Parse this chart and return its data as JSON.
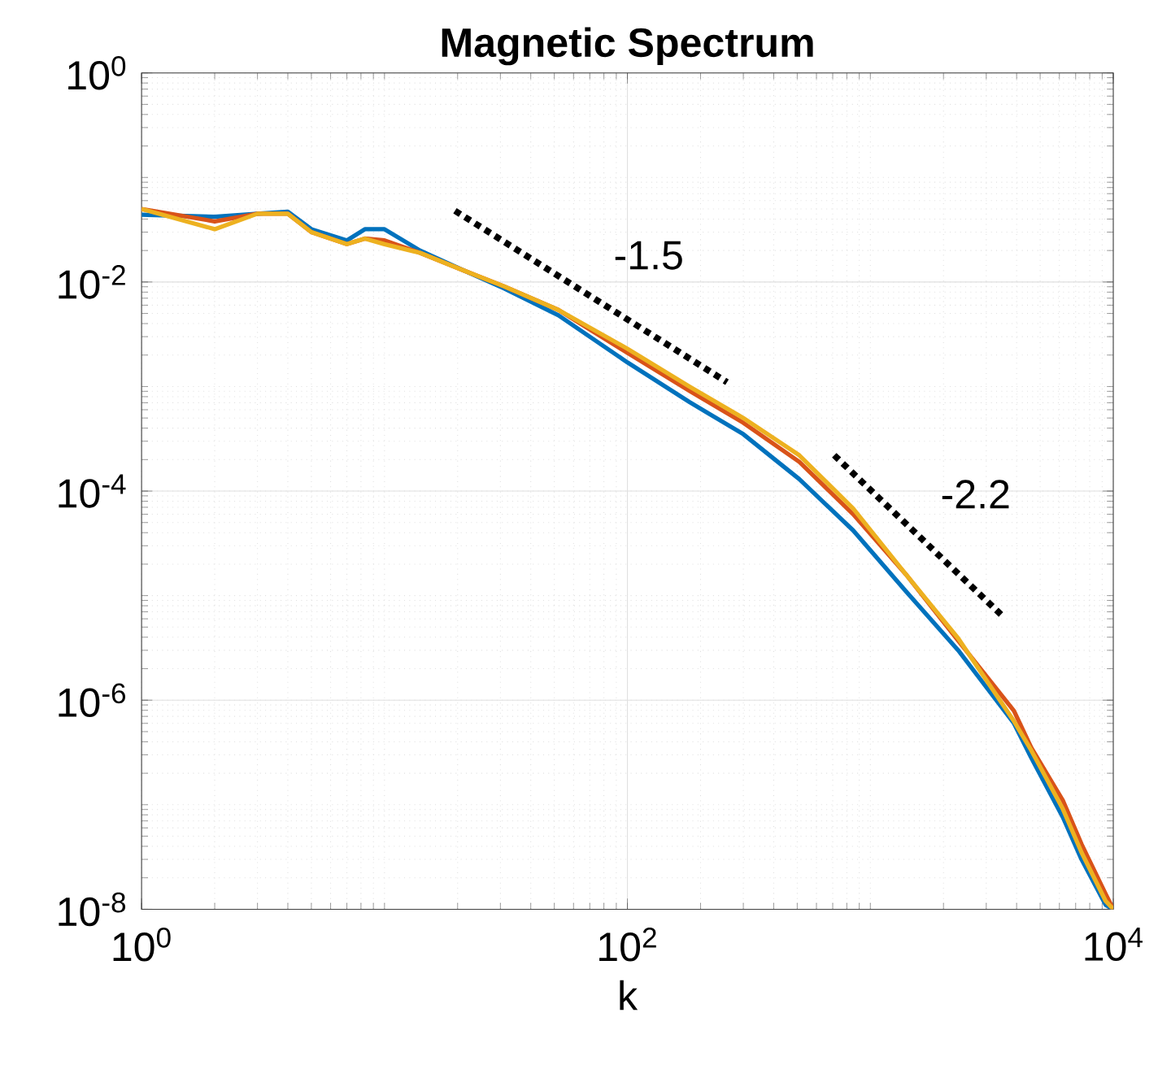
{
  "chart_data": {
    "type": "line",
    "title": "Magnetic Spectrum",
    "xlabel": "k",
    "log": "xy",
    "grid": true,
    "marker": "none",
    "xlim": [
      1,
      10000
    ],
    "ylim": [
      1e-08,
      1
    ],
    "xticks": [
      {
        "value": 1,
        "label": "10$^{0}$"
      },
      {
        "value": 100,
        "label": "10$^{2}$"
      },
      {
        "value": 10000,
        "label": "10$^{4}$"
      }
    ],
    "yticks": [
      {
        "value": 1e-08,
        "label": "10$^{-8}$"
      },
      {
        "value": 1e-06,
        "label": "10$^{-6}$"
      },
      {
        "value": 0.0001,
        "label": "10$^{-4}$"
      },
      {
        "value": 0.01,
        "label": "10$^{-2}$"
      },
      {
        "value": 1,
        "label": "10$^{0}$"
      }
    ],
    "x": [
      1,
      2,
      3,
      4,
      5,
      7,
      8.3,
      10,
      14,
      21,
      31,
      52,
      100,
      180,
      300,
      510,
      850,
      1400,
      2300,
      3900,
      4600,
      6200,
      7400,
      9300,
      10000
    ],
    "series": [
      {
        "color": "#0072bd",
        "values": [
          0.044,
          0.042,
          0.045,
          0.047,
          0.032,
          0.025,
          0.032,
          0.032,
          0.02,
          0.013,
          0.0087,
          0.0048,
          0.0017,
          0.00071,
          0.00035,
          0.00013,
          4.2e-05,
          1.1e-05,
          3e-06,
          6e-07,
          2.8e-07,
          7.6e-08,
          3e-08,
          1.1e-08,
          1e-08
        ]
      },
      {
        "color": "#d95319",
        "values": [
          0.05,
          0.038,
          0.045,
          0.045,
          0.03,
          0.023,
          0.026,
          0.025,
          0.019,
          0.013,
          0.0091,
          0.0054,
          0.0021,
          0.00091,
          0.00045,
          0.00019,
          6e-05,
          1.6e-05,
          3.7e-06,
          7.9e-07,
          3.5e-07,
          1.1e-07,
          4.2e-08,
          1.4e-08,
          1e-08
        ]
      },
      {
        "color": "#edb120",
        "values": [
          0.05,
          0.032,
          0.045,
          0.045,
          0.03,
          0.023,
          0.026,
          0.023,
          0.019,
          0.013,
          0.0091,
          0.0054,
          0.0023,
          0.001,
          0.0005,
          0.00022,
          6.8e-05,
          1.6e-05,
          3.9e-06,
          6.3e-07,
          3.3e-07,
          9.1e-08,
          3.5e-08,
          1.2e-08,
          1e-08
        ]
      },
      {
        "type": "line",
        "color": "#000000",
        "line_style": "dotted",
        "x": [
          19.5,
          257
        ],
        "values": [
          0.048,
          0.0011
        ]
      },
      {
        "type": "line",
        "color": "#000000",
        "line_style": "dotted",
        "x": [
          710,
          3470
        ],
        "values": [
          0.00022,
          6.5e-06
        ]
      }
    ],
    "annotations": [
      "-1.5",
      "-2.2"
    ]
  }
}
